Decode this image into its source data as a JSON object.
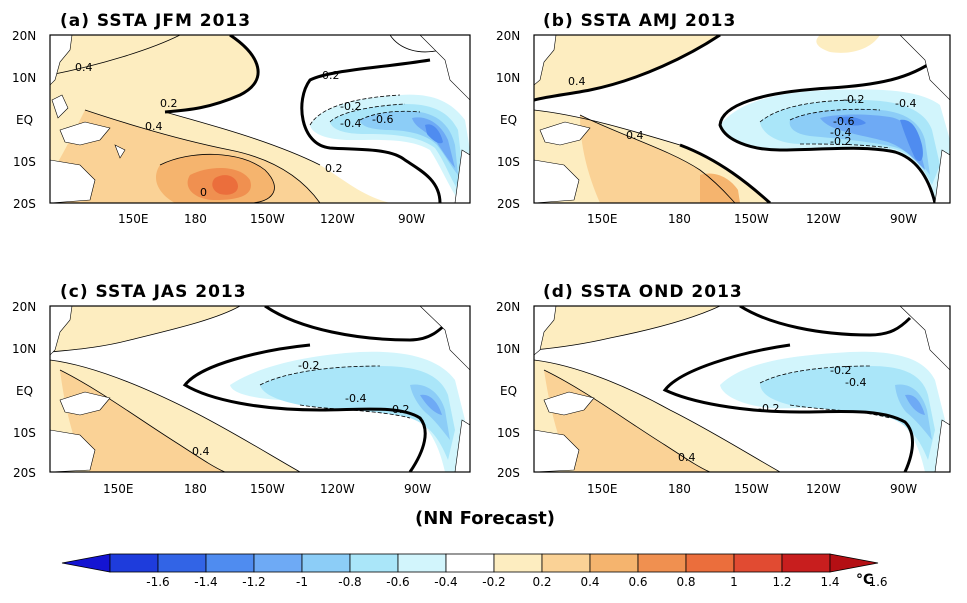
{
  "footer": "(NN Forecast)",
  "colorbar": {
    "labels": [
      "-1.6",
      "-1.4",
      "-1.2",
      "-1",
      "-0.8",
      "-0.6",
      "-0.4",
      "-0.2",
      "0.2",
      "0.4",
      "0.6",
      "0.8",
      "1",
      "1.2",
      "1.4",
      "1.6"
    ],
    "colors": [
      "#1414d2",
      "#1e3cdc",
      "#3264e6",
      "#4f8cf0",
      "#6eaaf5",
      "#8ccdf7",
      "#aae6f9",
      "#d2f5fc",
      "#ffffff",
      "#fdedc0",
      "#fad296",
      "#f5b46e",
      "#f09050",
      "#eb6e3c",
      "#e14b32",
      "#c81e1e",
      "#b40f14"
    ],
    "unit": "°C"
  },
  "panels": [
    {
      "title": "(a) SSTA  JFM 2013",
      "lat_labels": [
        "20N",
        "10N",
        "EQ",
        "10S",
        "20S"
      ],
      "lon_labels": [
        "150E",
        "180",
        "150W",
        "120W",
        "90W"
      ],
      "contour_labels": [
        "0.4",
        "0.2",
        "0.4",
        "-0.2",
        "-0.4",
        "-0.6",
        "0.2",
        "0.2",
        "0"
      ]
    },
    {
      "title": "(b) SSTA  AMJ 2013",
      "lat_labels": [
        "20N",
        "10N",
        "EQ",
        "10S",
        "20S"
      ],
      "lon_labels": [
        "150E",
        "180",
        "150W",
        "120W",
        "90W"
      ],
      "contour_labels": [
        "0.4",
        "0.4",
        "-0.2",
        "-0.4",
        "-0.2",
        "-0.6",
        "-0.4"
      ]
    },
    {
      "title": "(c) SSTA  JAS 2013",
      "lat_labels": [
        "20N",
        "10N",
        "EQ",
        "10S",
        "20S"
      ],
      "lon_labels": [
        "150E",
        "180",
        "150W",
        "120W",
        "90W"
      ],
      "contour_labels": [
        "-0.2",
        "-0.4",
        "-0.2",
        "0.4"
      ]
    },
    {
      "title": "(d) SSTA  OND 2013",
      "lat_labels": [
        "20N",
        "10N",
        "EQ",
        "10S",
        "20S"
      ],
      "lon_labels": [
        "150E",
        "180",
        "150W",
        "120W",
        "90W"
      ],
      "contour_labels": [
        "-0.2",
        "-0.4",
        "-0.2",
        "0.4"
      ]
    }
  ]
}
